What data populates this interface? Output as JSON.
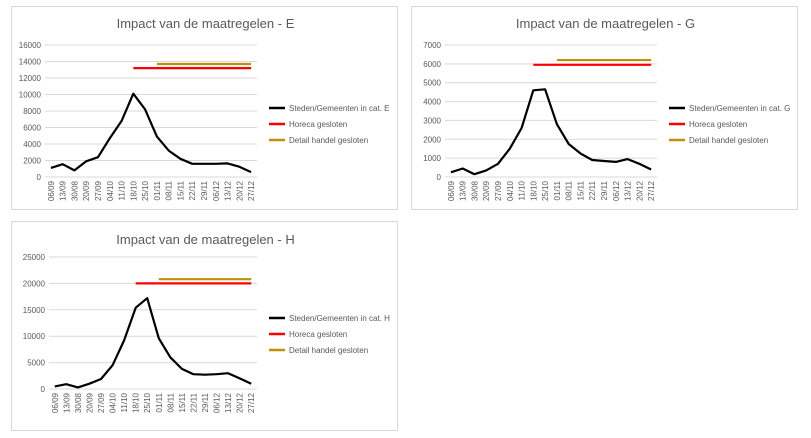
{
  "colors": {
    "cases": "#000000",
    "horeca": "#ff0000",
    "detail": "#bf9000"
  },
  "chart_data": [
    {
      "id": "E",
      "type": "line",
      "title": "Impact van de maatregelen - E",
      "categories": [
        "06/09",
        "13/09",
        "30/08",
        "20/09",
        "27/09",
        "04/10",
        "11/10",
        "18/10",
        "25/10",
        "01/11",
        "08/11",
        "15/11",
        "22/11",
        "29/11",
        "06/12",
        "13/12",
        "20/12",
        "27/12"
      ],
      "ylim": [
        0,
        16000
      ],
      "yticks": [
        "0",
        "2000",
        "4000",
        "6000",
        "8000",
        "10000",
        "12000",
        "14000",
        "16000"
      ],
      "grid": true,
      "legend_position": "right",
      "series": [
        {
          "name": "Steden/Gemeenten in cat. E",
          "color_key": "cases",
          "values": [
            1100,
            1550,
            800,
            1900,
            2400,
            4700,
            6800,
            10100,
            8200,
            4900,
            3200,
            2200,
            1600,
            1600,
            1600,
            1650,
            1250,
            600
          ]
        },
        {
          "name": "Horeca gesloten",
          "color_key": "horeca",
          "start_index": 7,
          "end_index": 17,
          "value": 13200
        },
        {
          "name": "Detail handel gesloten",
          "color_key": "detail",
          "start_index": 9,
          "end_index": 17,
          "value": 13700
        }
      ]
    },
    {
      "id": "G",
      "type": "line",
      "title": "Impact van de maatregelen - G",
      "categories": [
        "06/09",
        "13/09",
        "30/08",
        "20/09",
        "27/09",
        "04/10",
        "11/10",
        "18/10",
        "25/10",
        "01/11",
        "08/11",
        "15/11",
        "22/11",
        "29/11",
        "06/12",
        "13/12",
        "20/12",
        "27/12"
      ],
      "ylim": [
        0,
        7000
      ],
      "yticks": [
        "0",
        "1000",
        "2000",
        "3000",
        "4000",
        "5000",
        "6000",
        "7000"
      ],
      "grid": true,
      "legend_position": "right",
      "series": [
        {
          "name": "Steden/Gemeenten in cat. G",
          "color_key": "cases",
          "values": [
            250,
            450,
            150,
            350,
            700,
            1500,
            2600,
            4600,
            4650,
            2800,
            1750,
            1250,
            900,
            850,
            800,
            950,
            700,
            400
          ]
        },
        {
          "name": "Horeca gesloten",
          "color_key": "horeca",
          "start_index": 7,
          "end_index": 17,
          "value": 5950
        },
        {
          "name": "Detail handel gesloten",
          "color_key": "detail",
          "start_index": 9,
          "end_index": 17,
          "value": 6200
        }
      ]
    },
    {
      "id": "H",
      "type": "line",
      "title": "Impact van de maatregelen - H",
      "categories": [
        "06/09",
        "13/09",
        "30/08",
        "20/09",
        "27/09",
        "04/10",
        "11/10",
        "18/10",
        "25/10",
        "01/11",
        "08/11",
        "15/11",
        "22/11",
        "29/11",
        "06/12",
        "13/12",
        "20/12",
        "27/12"
      ],
      "ylim": [
        0,
        25000
      ],
      "yticks": [
        "0",
        "5000",
        "10000",
        "15000",
        "20000",
        "25000"
      ],
      "grid": true,
      "legend_position": "right",
      "series": [
        {
          "name": "Steden/Gemeenten in cat. H",
          "color_key": "cases",
          "values": [
            500,
            900,
            300,
            1000,
            1900,
            4500,
            9200,
            15400,
            17200,
            9600,
            6000,
            3800,
            2800,
            2700,
            2800,
            3000,
            2000,
            1000
          ]
        },
        {
          "name": "Horeca gesloten",
          "color_key": "horeca",
          "start_index": 7,
          "end_index": 17,
          "value": 20000
        },
        {
          "name": "Detail handel gesloten",
          "color_key": "detail",
          "start_index": 9,
          "end_index": 17,
          "value": 20800
        }
      ]
    }
  ]
}
